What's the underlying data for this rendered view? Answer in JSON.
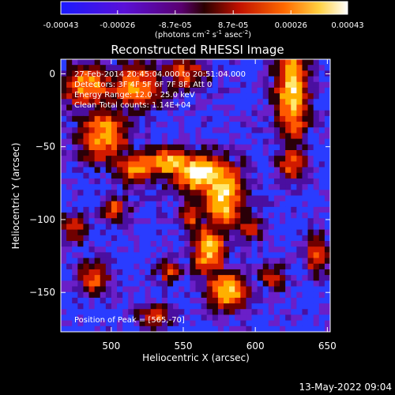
{
  "colorbar": {
    "tick_labels": [
      "-0.00043",
      "-0.00026",
      "-8.7e-05",
      "8.7e-05",
      "0.00026",
      "0.00043"
    ],
    "tick_values": [
      -0.00043,
      -0.00026,
      -8.7e-05,
      8.7e-05,
      0.00026,
      0.00043
    ],
    "range": [
      -0.00043,
      0.00043
    ],
    "units_main": "(photons cm",
    "units_exp1": "-2",
    "units_mid": " s",
    "units_exp2": "-1",
    "units_after": " asec",
    "units_exp3": "-2",
    "units_end": ")",
    "colors": [
      "#1a1aff",
      "#6a00cc",
      "#b00000",
      "#ff3000",
      "#ff9a00",
      "#ffffff"
    ]
  },
  "chart_data": {
    "type": "heatmap",
    "title": "Reconstructed RHESSI Image",
    "xlabel": "Heliocentric X (arcsec)",
    "ylabel": "Heliocentric Y (arcsec)",
    "xlim": [
      465,
      652
    ],
    "ylim": [
      -177,
      10
    ],
    "x_ticks": [
      500,
      550,
      600,
      650
    ],
    "x_tick_labels": [
      "500",
      "550",
      "600",
      "650"
    ],
    "y_ticks": [
      0,
      -50,
      -100,
      -150
    ],
    "y_tick_labels": [
      "0",
      "−50",
      "−100",
      "−150"
    ],
    "peak": [
      565,
      -70
    ]
  },
  "annotations": {
    "time_range": "27-Feb-2014 20:45:04.000 to 20:51:04.000",
    "detectors": "Detectors: 3F 4F 5F 6F 7F 8F, Att 0",
    "energy_range": "Energy Range: 12.0 - 25.0 keV",
    "clean_counts": "Clean     Total counts: 1.14E+04",
    "peak_position": "Position of Peak = [565,-70]"
  },
  "footer": {
    "date": "13-May-2022 09:04"
  }
}
